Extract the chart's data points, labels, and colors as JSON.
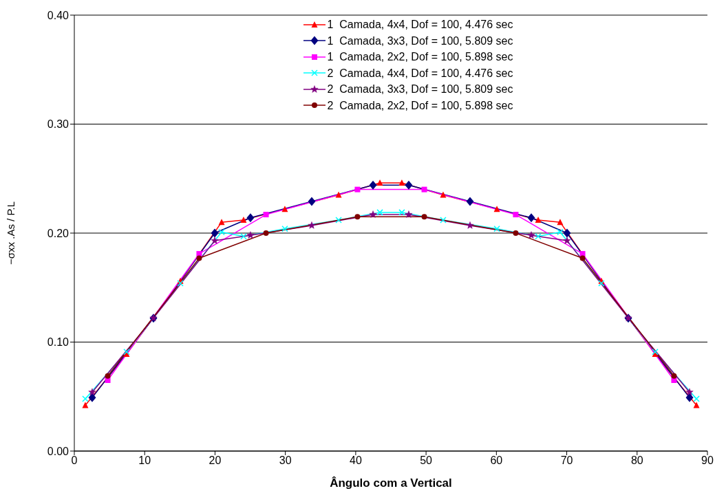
{
  "chart_data": {
    "type": "line",
    "xlabel": "Ângulo  com  a Vertical",
    "ylabel": "−σxx .As / P.L",
    "xlim": [
      0,
      90
    ],
    "xticks": [
      0,
      10,
      20,
      30,
      40,
      50,
      60,
      70,
      80,
      90
    ],
    "ylim": [
      0,
      0.4
    ],
    "yticks": [
      {
        "value": 0,
        "label": "0.00"
      },
      {
        "value": 0.1,
        "label": "0.10"
      },
      {
        "value": 0.2,
        "label": "0.20"
      },
      {
        "value": 0.3,
        "label": "0.30"
      },
      {
        "value": 0.4,
        "label": "0.40"
      }
    ],
    "grid": "y",
    "legend": "top",
    "line_style": "solid",
    "series": [
      {
        "name": "1  Camada, 4x4, Dof = 100, 4.476 sec",
        "color": "#ff0000",
        "marker": "triangle",
        "x": [
          1.56,
          7.43,
          15.07,
          20.94,
          24.06,
          29.93,
          37.57,
          43.44,
          46.56,
          52.43,
          60.07,
          65.94,
          69.06,
          74.93,
          82.57,
          88.44
        ],
        "values": [
          0.042,
          0.089,
          0.156,
          0.21,
          0.212,
          0.222,
          0.235,
          0.246,
          0.246,
          0.235,
          0.222,
          0.212,
          0.21,
          0.156,
          0.089,
          0.042
        ]
      },
      {
        "name": "1  Camada, 3x3, Dof = 100, 5.809 sec",
        "color": "#000080",
        "marker": "diamond",
        "x": [
          2.54,
          11.25,
          19.96,
          25.04,
          33.75,
          42.46,
          47.54,
          56.25,
          64.96,
          70.04,
          78.75,
          87.46
        ],
        "values": [
          0.049,
          0.122,
          0.2,
          0.214,
          0.229,
          0.244,
          0.244,
          0.229,
          0.214,
          0.2,
          0.122,
          0.049
        ]
      },
      {
        "name": "1  Camada, 2x2, Dof = 100, 5.898 sec",
        "color": "#ff00ff",
        "marker": "square",
        "x": [
          4.75,
          17.75,
          27.25,
          40.25,
          49.75,
          62.75,
          72.25,
          85.25
        ],
        "values": [
          0.065,
          0.181,
          0.217,
          0.24,
          0.24,
          0.217,
          0.181,
          0.065
        ]
      },
      {
        "name": "2  Camada, 4x4, Dof = 100, 4.476 sec",
        "color": "#00ffff",
        "marker": "cross",
        "x": [
          1.56,
          7.43,
          15.07,
          20.94,
          24.06,
          29.93,
          37.57,
          43.44,
          46.56,
          52.43,
          60.07,
          65.94,
          69.06,
          74.93,
          82.57,
          88.44
        ],
        "values": [
          0.048,
          0.091,
          0.154,
          0.201,
          0.197,
          0.204,
          0.212,
          0.219,
          0.219,
          0.212,
          0.204,
          0.197,
          0.201,
          0.154,
          0.091,
          0.048
        ]
      },
      {
        "name": "2  Camada, 3x3, Dof = 100, 5.809 sec",
        "color": "#800080",
        "marker": "star",
        "x": [
          2.54,
          11.25,
          19.96,
          25.04,
          33.75,
          42.46,
          47.54,
          56.25,
          64.96,
          70.04,
          78.75,
          87.46
        ],
        "values": [
          0.054,
          0.122,
          0.193,
          0.198,
          0.207,
          0.217,
          0.217,
          0.207,
          0.198,
          0.193,
          0.122,
          0.054
        ]
      },
      {
        "name": "2  Camada, 2x2, Dof = 100, 5.898 sec",
        "color": "#800000",
        "marker": "circle",
        "x": [
          4.75,
          17.75,
          27.25,
          40.25,
          49.75,
          62.75,
          72.25,
          85.25
        ],
        "values": [
          0.069,
          0.177,
          0.2,
          0.215,
          0.215,
          0.2,
          0.177,
          0.069
        ]
      }
    ]
  }
}
